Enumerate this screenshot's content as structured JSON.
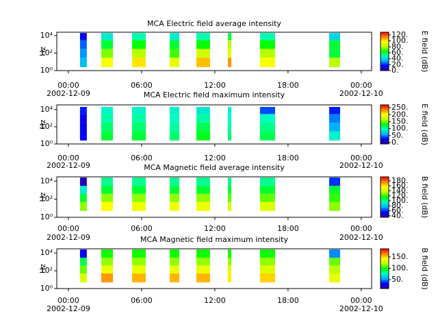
{
  "colormap": [
    "#3000a0",
    "#0000ff",
    "#00b0ff",
    "#00ffc0",
    "#00ff00",
    "#c0ff00",
    "#ffff00",
    "#ff8000",
    "#ff0000"
  ],
  "chart_data": [
    {
      "type": "heatmap",
      "title": "MCA  Electric field average intensity",
      "ylabel": "Hz",
      "colorbar_label": "E field (dB)",
      "xlim": [
        -0.95,
        24.85
      ],
      "xticks": [
        {
          "value": 0,
          "label": "00:00"
        },
        {
          "value": 6,
          "label": "06:00"
        },
        {
          "value": 12,
          "label": "12:00"
        },
        {
          "value": 18,
          "label": "18:00"
        },
        {
          "value": 24,
          "label": "00:00"
        }
      ],
      "x_annotations": [
        {
          "x": 0,
          "text": "2002-12-09"
        },
        {
          "x": 24,
          "text": "2002-12-10"
        }
      ],
      "log_y": true,
      "ylim": [
        1,
        24500
      ],
      "yticks": [
        {
          "value": 1,
          "label": "10⁰"
        },
        {
          "value": 100,
          "label": "10²"
        },
        {
          "value": 10000,
          "label": "10⁴"
        }
      ],
      "bands": [
        2.5,
        30,
        300,
        3000,
        20000
      ],
      "clim": [
        0,
        129
      ],
      "cticks": [
        {
          "value": 0,
          "label": "0."
        },
        {
          "value": 20,
          "label": "20."
        },
        {
          "value": 40,
          "label": "40."
        },
        {
          "value": 60,
          "label": "60."
        },
        {
          "value": 80,
          "label": "80."
        },
        {
          "value": 100,
          "label": "100."
        },
        {
          "value": 120,
          "label": "120."
        }
      ],
      "segments": [
        {
          "start": 0.95,
          "end": 1.51,
          "values": [
            35,
            30,
            25,
            15
          ]
        },
        {
          "start": 2.69,
          "end": 3.65,
          "values": [
            95,
            75,
            60,
            45
          ]
        },
        {
          "start": 5.22,
          "end": 6.34,
          "values": [
            100,
            80,
            65,
            50
          ]
        },
        {
          "start": 8.3,
          "end": 9.09,
          "values": [
            90,
            70,
            60,
            45
          ]
        },
        {
          "start": 10.49,
          "end": 11.61,
          "values": [
            105,
            85,
            65,
            50
          ]
        },
        {
          "start": 13.07,
          "end": 13.35,
          "values": [
            110,
            90,
            80,
            60
          ]
        },
        {
          "start": 15.7,
          "end": 16.94,
          "values": [
            95,
            80,
            65,
            50
          ]
        },
        {
          "start": 21.37,
          "end": 22.27,
          "values": [
            80,
            60,
            60,
            40
          ]
        }
      ]
    },
    {
      "type": "heatmap",
      "title": "MCA  Electric field maximum intensity",
      "ylabel": "Hz",
      "colorbar_label": "E field (dB)",
      "xlim": [
        -0.95,
        24.85
      ],
      "xticks": [
        {
          "value": 0,
          "label": "00:00"
        },
        {
          "value": 6,
          "label": "06:00"
        },
        {
          "value": 12,
          "label": "12:00"
        },
        {
          "value": 18,
          "label": "18:00"
        },
        {
          "value": 24,
          "label": "00:00"
        }
      ],
      "x_annotations": [
        {
          "x": 0,
          "text": "2002-12-09"
        },
        {
          "x": 24,
          "text": "2002-12-10"
        }
      ],
      "log_y": true,
      "ylim": [
        1,
        35000
      ],
      "yticks": [
        {
          "value": 1,
          "label": "10⁰"
        },
        {
          "value": 100,
          "label": "10²"
        },
        {
          "value": 10000,
          "label": "10⁴"
        }
      ],
      "bands": [
        2.5,
        30,
        300,
        3000,
        20000
      ],
      "clim": [
        -10,
        270
      ],
      "cticks": [
        {
          "value": 0,
          "label": "0."
        },
        {
          "value": 50,
          "label": "50."
        },
        {
          "value": 100,
          "label": "100."
        },
        {
          "value": 150,
          "label": "150."
        },
        {
          "value": 200,
          "label": "200."
        },
        {
          "value": 250,
          "label": "250."
        }
      ],
      "segments": [
        {
          "start": 0.95,
          "end": 1.51,
          "values": [
            25,
            20,
            20,
            30
          ]
        },
        {
          "start": 2.69,
          "end": 3.65,
          "values": [
            120,
            110,
            100,
            90
          ]
        },
        {
          "start": 5.22,
          "end": 6.34,
          "values": [
            120,
            110,
            100,
            90
          ]
        },
        {
          "start": 8.3,
          "end": 9.09,
          "values": [
            110,
            100,
            95,
            90
          ]
        },
        {
          "start": 10.49,
          "end": 11.61,
          "values": [
            125,
            115,
            100,
            85
          ]
        },
        {
          "start": 13.07,
          "end": 13.35,
          "values": [
            110,
            100,
            95,
            90
          ]
        },
        {
          "start": 15.7,
          "end": 16.94,
          "values": [
            115,
            105,
            95,
            40
          ]
        },
        {
          "start": 21.37,
          "end": 22.27,
          "values": [
            90,
            60,
            50,
            30
          ]
        }
      ]
    },
    {
      "type": "heatmap",
      "title": "MCA  Magnetic field average intensity",
      "ylabel": "Hz",
      "colorbar_label": "B field (dB)",
      "xlim": [
        -0.95,
        24.85
      ],
      "xticks": [
        {
          "value": 0,
          "label": "00:00"
        },
        {
          "value": 6,
          "label": "06:00"
        },
        {
          "value": 12,
          "label": "12:00"
        },
        {
          "value": 18,
          "label": "18:00"
        },
        {
          "value": 24,
          "label": "00:00"
        }
      ],
      "x_annotations": [
        {
          "x": 0,
          "text": "2002-12-09"
        },
        {
          "x": 24,
          "text": "2002-12-10"
        }
      ],
      "log_y": true,
      "ylim": [
        1,
        30000
      ],
      "yticks": [
        {
          "value": 1,
          "label": "10⁰"
        },
        {
          "value": 100,
          "label": "10²"
        },
        {
          "value": 10000,
          "label": "10⁴"
        }
      ],
      "bands": [
        5,
        50,
        400,
        3000,
        25000
      ],
      "clim": [
        34,
        196
      ],
      "cticks": [
        {
          "value": 40,
          "label": "40."
        },
        {
          "value": 60,
          "label": "60."
        },
        {
          "value": 80,
          "label": "80."
        },
        {
          "value": 100,
          "label": "100."
        },
        {
          "value": 120,
          "label": "120."
        },
        {
          "value": 140,
          "label": "140."
        },
        {
          "value": 160,
          "label": "160."
        },
        {
          "value": 180,
          "label": "180."
        }
      ],
      "segments": [
        {
          "start": 0.95,
          "end": 1.51,
          "values": [
            130,
            110,
            90,
            40
          ]
        },
        {
          "start": 2.69,
          "end": 3.65,
          "values": [
            155,
            130,
            110,
            100
          ]
        },
        {
          "start": 5.22,
          "end": 6.34,
          "values": [
            150,
            130,
            110,
            100
          ]
        },
        {
          "start": 8.3,
          "end": 9.09,
          "values": [
            150,
            130,
            110,
            100
          ]
        },
        {
          "start": 10.49,
          "end": 11.61,
          "values": [
            150,
            130,
            110,
            100
          ]
        },
        {
          "start": 13.07,
          "end": 13.35,
          "values": [
            140,
            125,
            110,
            100
          ]
        },
        {
          "start": 15.7,
          "end": 16.94,
          "values": [
            145,
            125,
            110,
            100
          ]
        },
        {
          "start": 21.37,
          "end": 22.27,
          "values": [
            130,
            120,
            110,
            60
          ]
        }
      ]
    },
    {
      "type": "heatmap",
      "title": "MCA  Magnetic field maximum intensity",
      "ylabel": "Hz",
      "colorbar_label": "B field (dB)",
      "xlim": [
        -0.95,
        24.85
      ],
      "xticks": [
        {
          "value": 0,
          "label": "00:00"
        },
        {
          "value": 6,
          "label": "06:00"
        },
        {
          "value": 12,
          "label": "12:00"
        },
        {
          "value": 18,
          "label": "18:00"
        },
        {
          "value": 24,
          "label": "00:00"
        }
      ],
      "x_annotations": [
        {
          "x": 0,
          "text": "2002-12-09"
        },
        {
          "x": 24,
          "text": "2002-12-10"
        }
      ],
      "log_y": true,
      "ylim": [
        1,
        30000
      ],
      "yticks": [
        {
          "value": 1,
          "label": "10⁰"
        },
        {
          "value": 100,
          "label": "10²"
        },
        {
          "value": 10000,
          "label": "10⁴"
        }
      ],
      "bands": [
        5,
        50,
        400,
        3000,
        25000
      ],
      "clim": [
        11,
        186
      ],
      "cticks": [
        {
          "value": 50,
          "label": "50."
        },
        {
          "value": 100,
          "label": "100."
        },
        {
          "value": 150,
          "label": "150."
        }
      ],
      "segments": [
        {
          "start": 0.95,
          "end": 1.51,
          "values": [
            130,
            110,
            90,
            30
          ]
        },
        {
          "start": 2.69,
          "end": 3.65,
          "values": [
            160,
            135,
            115,
            100
          ]
        },
        {
          "start": 5.22,
          "end": 6.34,
          "values": [
            155,
            135,
            115,
            100
          ]
        },
        {
          "start": 8.3,
          "end": 9.09,
          "values": [
            155,
            135,
            115,
            100
          ]
        },
        {
          "start": 10.49,
          "end": 11.61,
          "values": [
            155,
            135,
            115,
            100
          ]
        },
        {
          "start": 13.07,
          "end": 13.35,
          "values": [
            145,
            130,
            115,
            100
          ]
        },
        {
          "start": 15.7,
          "end": 16.94,
          "values": [
            150,
            130,
            115,
            100
          ]
        },
        {
          "start": 21.37,
          "end": 22.27,
          "values": [
            135,
            120,
            110,
            50
          ]
        }
      ]
    }
  ]
}
